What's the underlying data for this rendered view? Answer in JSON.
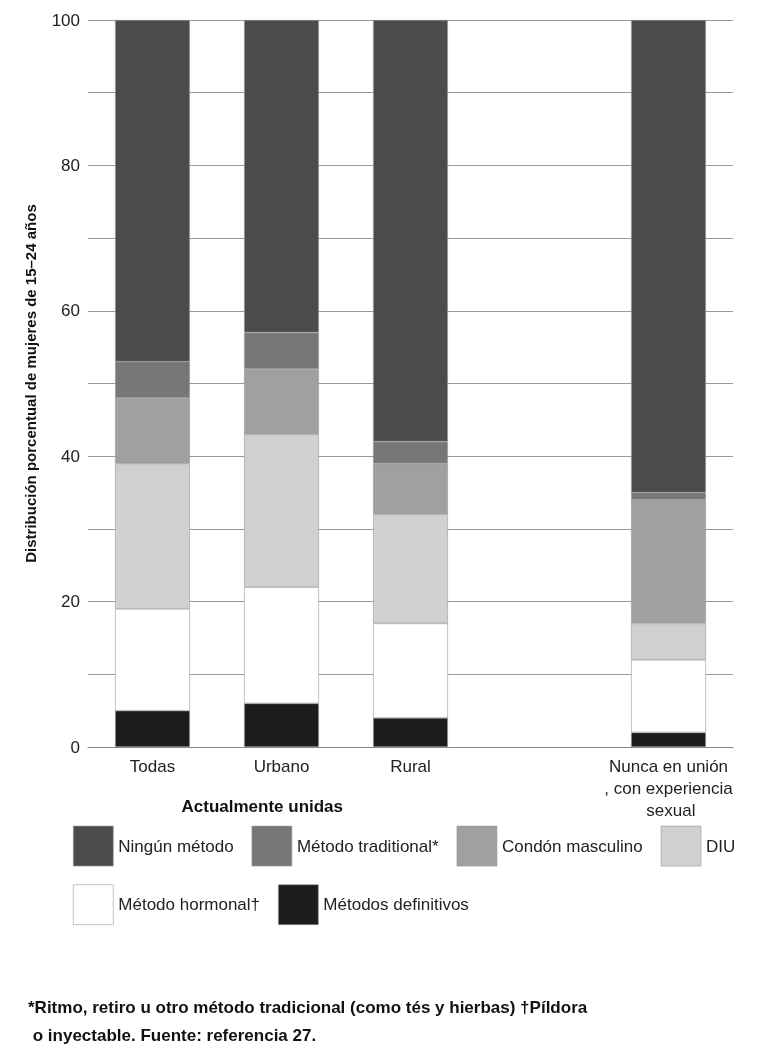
{
  "chart_data": {
    "type": "bar",
    "stacked": true,
    "ylabel": "Distribución porcentual de mujeres de 15–24 años",
    "xlabel": "Actualmente unidas",
    "categories": [
      "Todas",
      "Urbano",
      "Rural",
      null,
      "Nunca en unión, con experiencia sexual"
    ],
    "series": [
      {
        "name": "Métodos definitivos",
        "color": "#1c1c1c",
        "values": [
          5,
          6,
          4,
          null,
          2
        ]
      },
      {
        "name": "Método hormonal†",
        "color": "#ffffff",
        "values": [
          14,
          16,
          13,
          null,
          10
        ]
      },
      {
        "name": "DIU",
        "color": "#d0d0d0",
        "values": [
          20,
          21,
          15,
          null,
          5
        ]
      },
      {
        "name": "Condón masculino",
        "color": "#a0a0a0",
        "values": [
          9,
          9,
          7,
          null,
          17
        ]
      },
      {
        "name": "Método traditional*",
        "color": "#777777",
        "values": [
          5,
          5,
          3,
          null,
          1
        ]
      },
      {
        "name": "Ningún método",
        "color": "#4b4b4b",
        "values": [
          47,
          43,
          58,
          null,
          65
        ]
      }
    ],
    "ylim": [
      0,
      100
    ],
    "yticks": [
      0,
      {
        "value": 10,
        "label": null
      },
      20,
      {
        "value": 30,
        "label": null
      },
      40,
      {
        "value": 50,
        "label": null
      },
      60,
      {
        "value": 70,
        "label": null
      },
      80,
      {
        "value": 90,
        "label": null
      },
      100
    ],
    "grid": "y",
    "legend": "bottom",
    "annotations": [
      "*Ritmo, retiro u otro método tradicional (como tés y hierbas) †Píldora o inyectable. Fuente: referencia 27."
    ]
  }
}
